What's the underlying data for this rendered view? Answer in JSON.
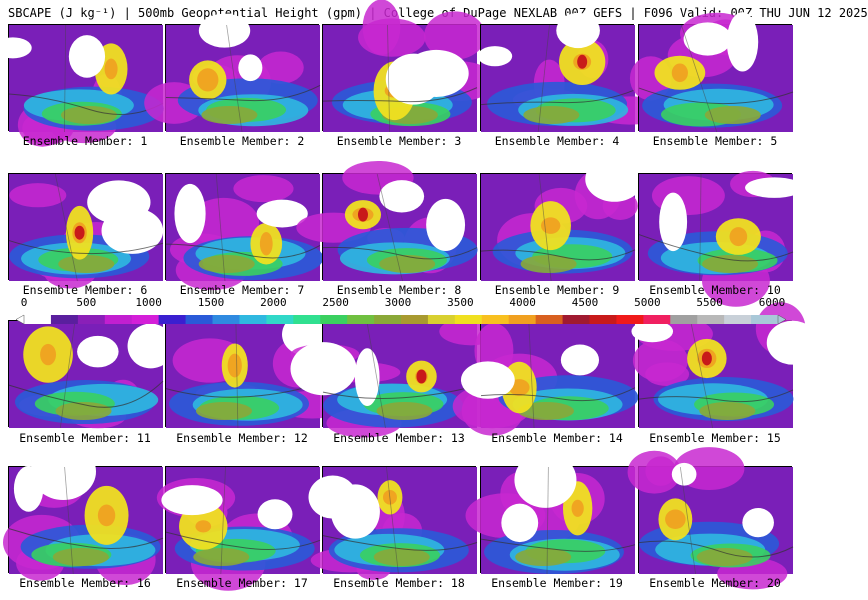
{
  "title": "SBCAPE (J kg⁻¹) | 500mb Geopotential Height (gpm) | College of DuPage NEXLAB 00Z GEFS | F096 Valid: 00Z THU JUN 12 2025",
  "members": [
    "Ensemble Member: 1",
    "Ensemble Member: 2",
    "Ensemble Member: 3",
    "Ensemble Member: 4",
    "Ensemble Member: 5",
    "Ensemble Member: 6",
    "Ensemble Member: 7",
    "Ensemble Member: 8",
    "Ensemble Member: 9",
    "Ensemble Member: 10",
    "Ensemble Member: 11",
    "Ensemble Member: 12",
    "Ensemble Member: 13",
    "Ensemble Member: 14",
    "Ensemble Member: 15",
    "Ensemble Member: 16",
    "Ensemble Member: 17",
    "Ensemble Member: 18",
    "Ensemble Member: 19",
    "Ensemble Member: 20"
  ],
  "colorbar": {
    "ticks": [
      "0",
      "500",
      "1000",
      "1500",
      "2000",
      "2500",
      "3000",
      "3500",
      "4000",
      "4500",
      "5000",
      "5500",
      "6000"
    ],
    "colors": [
      "#ffffff",
      "#5a1f9e",
      "#8a1fb8",
      "#c21fd0",
      "#d41fd8",
      "#3a1fd0",
      "#2a5ad8",
      "#2f8ae0",
      "#2fb8e0",
      "#30d8c8",
      "#30e090",
      "#3ad060",
      "#70c040",
      "#8aa838",
      "#a89a30",
      "#d8d030",
      "#f0e020",
      "#f8c020",
      "#f0a020",
      "#d86020",
      "#a01a30",
      "#c81a1a",
      "#f01a1a",
      "#f02060",
      "#a0a0a0",
      "#b8b8b8",
      "#c8d0d8",
      "#a8c8d8"
    ]
  },
  "legend_colors": {
    "white": "#ffffff",
    "purple": "#7a1fb8",
    "magenta": "#c828d0",
    "blue": "#2a5ad8",
    "cyan": "#2fb8e0",
    "green": "#3ad060",
    "olive": "#8aa838",
    "yellow": "#f0e020",
    "orange": "#f0a020",
    "red": "#c81a1a"
  }
}
